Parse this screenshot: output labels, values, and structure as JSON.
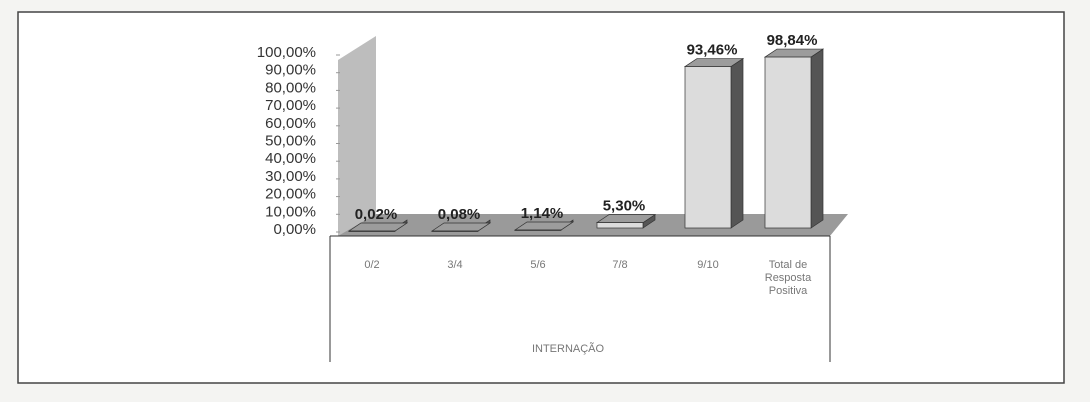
{
  "chart_data": {
    "type": "bar3d",
    "categories": [
      "0/2",
      "3/4",
      "5/6",
      "7/8",
      "9/10",
      "Total de Resposta Positiva"
    ],
    "values": [
      0.02,
      0.08,
      1.14,
      5.3,
      93.46,
      98.84
    ],
    "value_labels": [
      "0,02%",
      "0,08%",
      "1,14%",
      "5,30%",
      "93,46%",
      "98,84%"
    ],
    "x_label": "INTERNAÇÃO",
    "color": "#dcdcdc",
    "ylim": [
      0,
      100
    ],
    "yticks": [
      {
        "value": 0,
        "label": "0,00%"
      },
      {
        "value": 10,
        "label": "10,00%"
      },
      {
        "value": 20,
        "label": "20,00%"
      },
      {
        "value": 30,
        "label": "30,00%"
      },
      {
        "value": 40,
        "label": "40,00%"
      },
      {
        "value": 50,
        "label": "50,00%"
      },
      {
        "value": 60,
        "label": "60,00%"
      },
      {
        "value": 70,
        "label": "70,00%"
      },
      {
        "value": 80,
        "label": "80,00%"
      },
      {
        "value": 90,
        "label": "90,00%"
      },
      {
        "value": 100,
        "label": "100,00%"
      }
    ]
  }
}
